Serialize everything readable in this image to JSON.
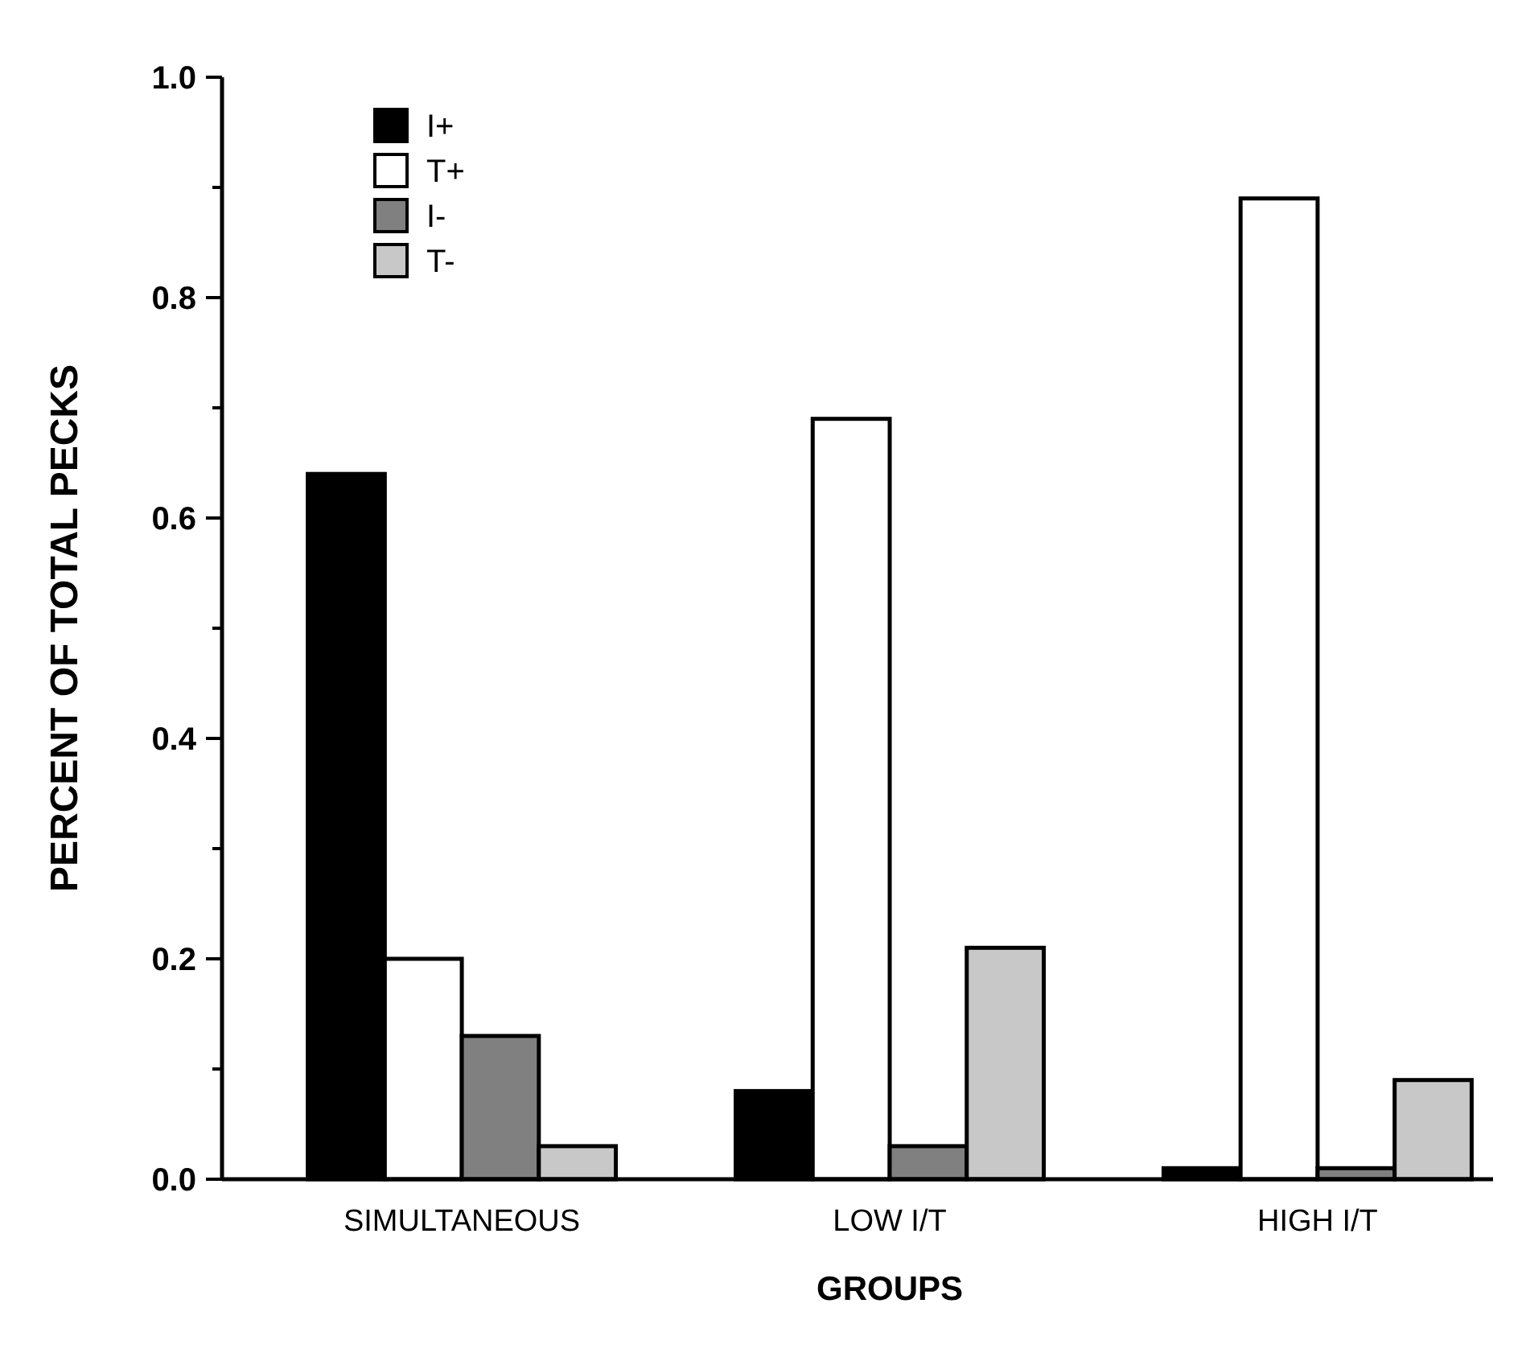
{
  "chart_data": {
    "type": "bar",
    "xlabel": "GROUPS",
    "ylabel": "PERCENT OF TOTAL PECKS",
    "categories": [
      "SIMULTANEOUS",
      "LOW  I/T",
      "HIGH I/T"
    ],
    "series": [
      {
        "name": "I+",
        "color": "#000000",
        "values": [
          0.64,
          0.08,
          0.01
        ]
      },
      {
        "name": "T+",
        "color": "#ffffff",
        "values": [
          0.2,
          0.69,
          0.89
        ]
      },
      {
        "name": "I-",
        "color": "#808080",
        "values": [
          0.13,
          0.03,
          0.01
        ]
      },
      {
        "name": "T-",
        "color": "#c8c8c8",
        "values": [
          0.03,
          0.21,
          0.09
        ]
      }
    ],
    "ylim": [
      0,
      1
    ],
    "yticks": [
      {
        "value": 0,
        "label": "0.0"
      },
      {
        "value": 0.1,
        "label": null
      },
      {
        "value": 0.2,
        "label": "0.2"
      },
      {
        "value": 0.3,
        "label": null
      },
      {
        "value": 0.4,
        "label": "0.4"
      },
      {
        "value": 0.5,
        "label": null
      },
      {
        "value": 0.6,
        "label": "0.6"
      },
      {
        "value": 0.7,
        "label": null
      },
      {
        "value": 0.8,
        "label": "0.8"
      },
      {
        "value": 0.9,
        "label": null
      },
      {
        "value": 1,
        "label": "1.0"
      }
    ],
    "grid": false,
    "legend": "top left"
  }
}
